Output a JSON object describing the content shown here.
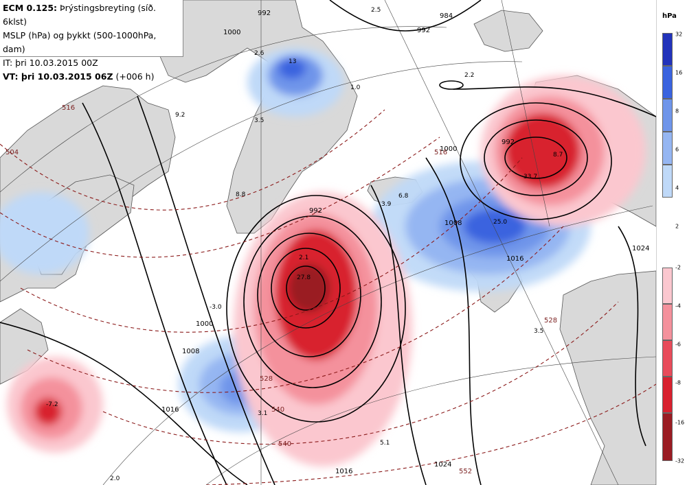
{
  "header": {
    "model": "ECM 0.125:",
    "title_rest": "Þrýstingsbreyting (síð. 6klst)",
    "line2": "MSLP (hPa) og þykkt (500-1000hPa, dam)",
    "line3": "IT: þri 10.03.2015 00Z",
    "vt_bold": "VT: þri 10.03.2015 06Z",
    "vt_rest": "(+006 h)"
  },
  "legend": {
    "unit": "hPa",
    "colors": {
      "blue_32": "#2233bb",
      "blue_16": "#3a63df",
      "blue_8": "#6f95ea",
      "blue_6": "#95b6f2",
      "blue_4": "#bfd9f8",
      "blue_2": "#ffffff",
      "red_2": "#ffffff",
      "red_4": "#fbc7cf",
      "red_6": "#f4919c",
      "red_8": "#e84b5a",
      "red_16": "#d8202e",
      "red_32": "#9a1b22"
    },
    "blue_ticks": [
      "32",
      "16",
      "8",
      "6",
      "4",
      "2"
    ],
    "red_ticks": [
      "-2",
      "-4",
      "-6",
      "-8",
      "-16",
      "-32"
    ]
  },
  "map": {
    "colors": {
      "land": "#d9d9d9",
      "sea": "#ffffff",
      "isobar": "#000000",
      "thickness": "#8b1a1a"
    },
    "isobar_labels": [
      "992",
      "984",
      "992",
      "1000",
      "992",
      "1000",
      "1008",
      "1016",
      "1016",
      "1024",
      "1000",
      "992",
      "1008",
      "1016",
      "1024"
    ],
    "thickness_labels": [
      "504",
      "516",
      "528",
      "540",
      "540",
      "552",
      "516",
      "528"
    ],
    "values": [
      "13",
      "2.5",
      "2.6",
      "2.2",
      "1.0",
      "3.5",
      "8.8",
      "9.2",
      "3.9",
      "6.8",
      "25.0",
      "8.7",
      "33.7",
      "3.5",
      "-3.0",
      "-7.2",
      "2.0",
      "3.1",
      "5.1",
      "27.8",
      "2.1"
    ]
  }
}
